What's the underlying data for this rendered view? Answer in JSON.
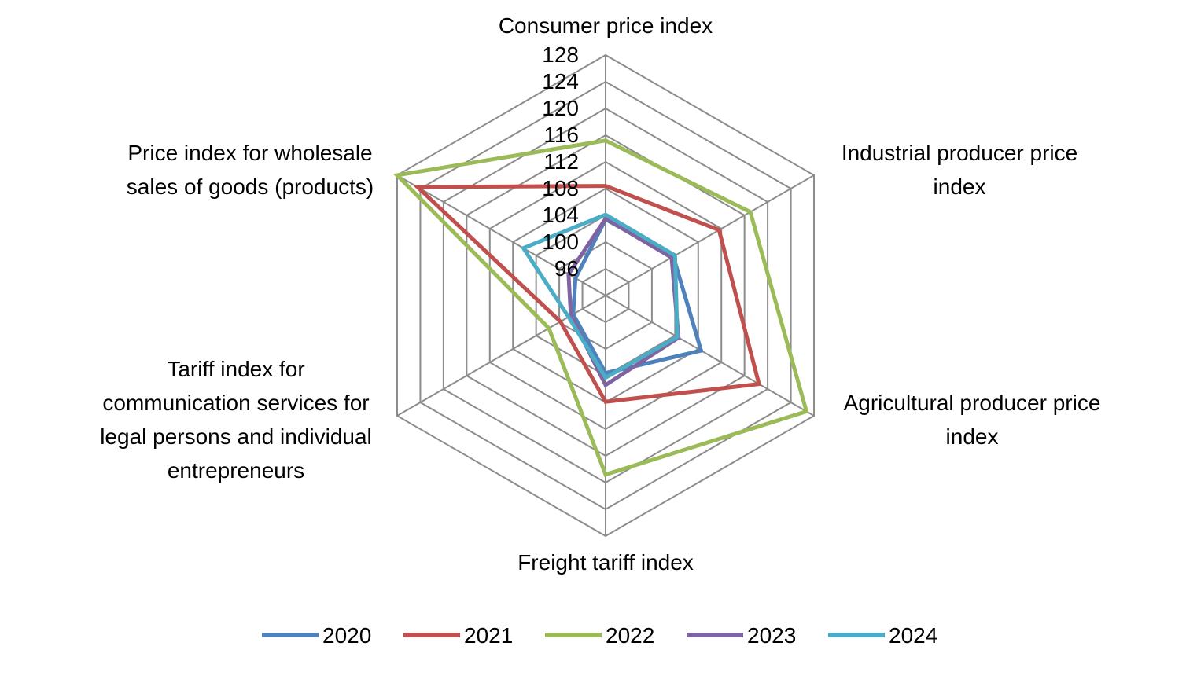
{
  "chart_data": {
    "type": "radar",
    "axes": [
      [
        "Consumer price index"
      ],
      [
        "Industrial producer price",
        "index"
      ],
      [
        "Agricultural producer price",
        "index"
      ],
      [
        "Freight tariff index"
      ],
      [
        "Tariff index for",
        "communication services for",
        "legal persons and individual",
        "entrepreneurs"
      ],
      [
        "Price index for wholesale",
        "sales of goods (products)"
      ]
    ],
    "r_ticks": [
      "96",
      "100",
      "104",
      "108",
      "112",
      "116",
      "120",
      "124",
      "128"
    ],
    "r_range": [
      92,
      128
    ],
    "grid": true,
    "legend_position": "bottom",
    "series": [
      {
        "name": "2020",
        "color": "#4f81bd",
        "values": [
          103.4,
          103.7,
          108.5,
          103.6,
          97.6,
          97.2
        ]
      },
      {
        "name": "2021",
        "color": "#c0504d",
        "values": [
          108.4,
          111.6,
          118.5,
          107.9,
          99.8,
          124.5
        ]
      },
      {
        "name": "2022",
        "color": "#9bbb59",
        "values": [
          115.2,
          117.0,
          126.7,
          118.8,
          101.8,
          128.0
        ]
      },
      {
        "name": "2023",
        "color": "#8064a2",
        "values": [
          103.5,
          103.4,
          104.6,
          105.4,
          98.0,
          98.4
        ]
      },
      {
        "name": "2024",
        "color": "#4bacc6",
        "values": [
          104.1,
          104.0,
          104.4,
          104.3,
          98.4,
          106.2
        ]
      }
    ]
  }
}
